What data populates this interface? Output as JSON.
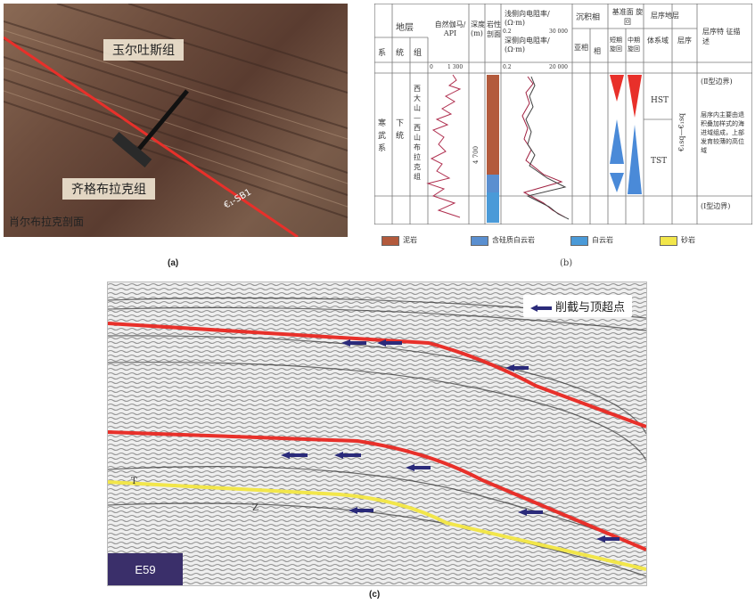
{
  "panel_a": {
    "caption": "(a)",
    "upper_formation": "玉尔吐斯组",
    "lower_formation": "齐格布拉克组",
    "section_name": "肖尔布拉克剖面",
    "boundary_label": "€₁-SB1"
  },
  "panel_b": {
    "caption": "(b)",
    "headers": {
      "strata": "地层",
      "system": "系",
      "series": "统",
      "formation": "组",
      "gamma": "自然伽马/ API",
      "gamma_min": "0",
      "gamma_max": "1 300",
      "depth": "深度 (m)",
      "lithology": "岩性 剖面",
      "shallow_res": "浅侧向电阻率/ (Ω·m)",
      "deep_res": "深侧向电阻率/ (Ω·m)",
      "res_min": "0.2",
      "shallow_max": "30 000",
      "deep_max": "20 000",
      "facies": "沉积相",
      "subfacies": "亚相",
      "facies_col": "相",
      "base_level": "基准面 旋回",
      "short_cycle": "短期 旋回",
      "mid_cycle": "中期 旋回",
      "sequence_strata": "层序地层",
      "systems_tract": "体系域",
      "sequence": "层序",
      "features": "层序特 征描述"
    },
    "system_value": "寒武系",
    "series_value": "下统",
    "formation_value": "西大山—西山布拉克组",
    "depth_value": "4 700",
    "hst": "HST",
    "tst": "TST",
    "sequence_value": "€₁sq—€₁sq",
    "boundary_top": "(Ⅱ型边界)",
    "boundary_bottom": "(Ⅰ型边界)",
    "description": "层序内主要由退积叠加样式的海进域组成，上部发育较薄的高位域",
    "legend": {
      "mudstone": "泥岩",
      "siliceous_dolomite": "含硅质白云岩",
      "dolomite": "白云岩",
      "sandstone": "砂岩"
    }
  },
  "panel_c": {
    "caption": "(c)",
    "legend_label": "削截与顶超点",
    "line_label": "E59",
    "marker_upper": "T",
    "marker_lower": "Z"
  },
  "colors": {
    "red_horizon": "#e8302a",
    "yellow_horizon": "#f2e64a",
    "arrow": "#2a2a7a",
    "e59_box": "#3a2f6a"
  }
}
